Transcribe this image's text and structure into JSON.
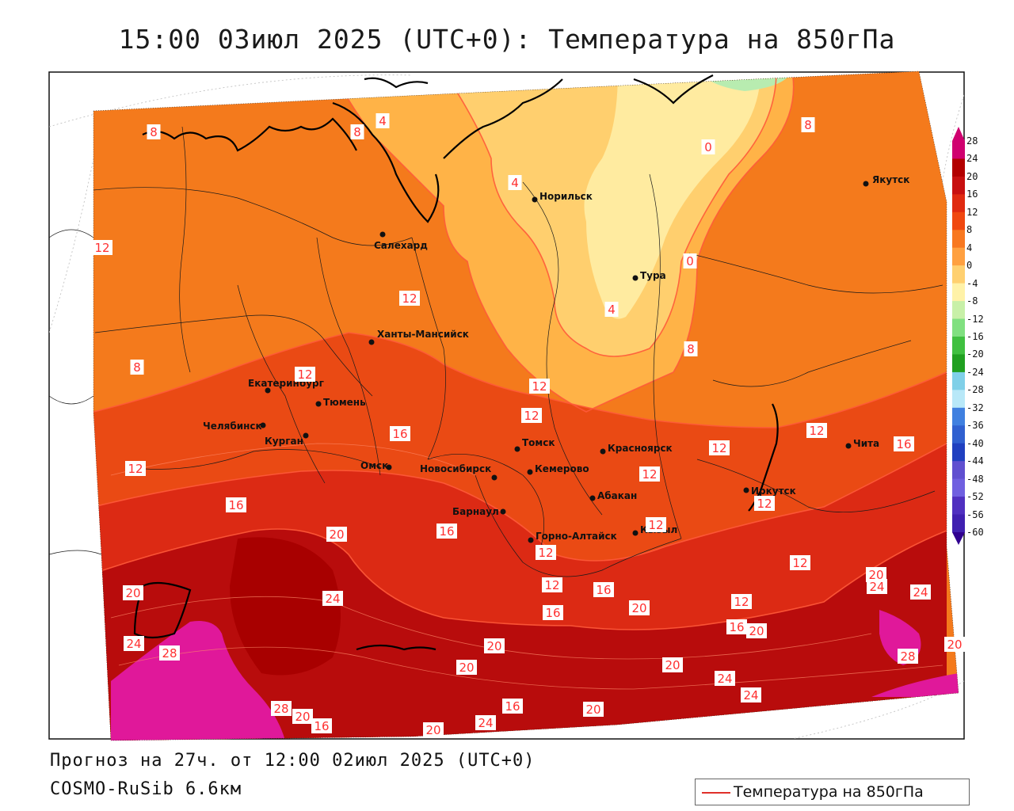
{
  "title": "15:00 03июл 2025 (UTC+0): Температура на 850гПа",
  "forecast_line": "Прогноз на 27ч. от 12:00 02июл 2025 (UTC+0)",
  "model_line": "COSMO-RuSib 6.6км",
  "legend_label": "Температура на 850гПа",
  "colorbar": {
    "labels": [
      "28",
      "24",
      "20",
      "16",
      "12",
      "8",
      "4",
      "0",
      "-4",
      "-8",
      "-12",
      "-16",
      "-20",
      "-24",
      "-28",
      "-32",
      "-36",
      "-40",
      "-44",
      "-48",
      "-52",
      "-56",
      "-60"
    ],
    "colors": [
      "#d0006f",
      "#b30000",
      "#c81010",
      "#e02a10",
      "#f04810",
      "#f87820",
      "#ffa040",
      "#ffd070",
      "#fff2a8",
      "#c8f0a8",
      "#80e080",
      "#40c040",
      "#20a020",
      "#80d0e8",
      "#b8e8f8",
      "#4080e0",
      "#3060d0",
      "#2040c0",
      "#6050d0",
      "#7060e0",
      "#5030c0",
      "#4020b0",
      "#300090"
    ]
  },
  "cities": [
    {
      "name": "Якутск"
    },
    {
      "name": "Норильск"
    },
    {
      "name": "Салехард"
    },
    {
      "name": "Тура"
    },
    {
      "name": "Ханты-Мансийск"
    },
    {
      "name": "Екатеринбург"
    },
    {
      "name": "Тюмень"
    },
    {
      "name": "Челябинск"
    },
    {
      "name": "Курган"
    },
    {
      "name": "Омск"
    },
    {
      "name": "Новосибирск"
    },
    {
      "name": "Томск"
    },
    {
      "name": "Кемерово"
    },
    {
      "name": "Красноярск"
    },
    {
      "name": "Абакан"
    },
    {
      "name": "Барнаул"
    },
    {
      "name": "Горно-Алтайск"
    },
    {
      "name": "Кызыл"
    },
    {
      "name": "Иркутск"
    },
    {
      "name": "Чита"
    }
  ],
  "isotherm_labels": [
    "8",
    "8",
    "4",
    "4",
    "0",
    "8",
    "12",
    "12",
    "4",
    "8",
    "12",
    "8",
    "12",
    "12",
    "16",
    "12",
    "16",
    "12",
    "12",
    "12",
    "12",
    "12",
    "12",
    "16",
    "20",
    "16",
    "12",
    "20",
    "16",
    "16",
    "12",
    "12",
    "20",
    "24",
    "24",
    "20",
    "24",
    "28",
    "20",
    "16",
    "20",
    "20",
    "20",
    "24",
    "28",
    "24",
    "20",
    "28",
    "24",
    "20",
    "16",
    "20",
    "24",
    "16",
    "20",
    "0"
  ]
}
